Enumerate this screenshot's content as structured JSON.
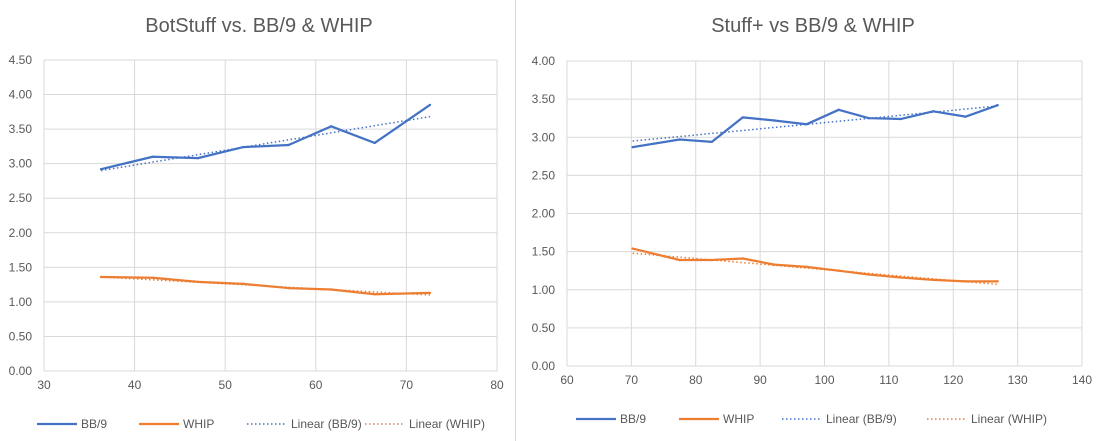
{
  "colors": {
    "bb9": "#4472c4",
    "whip": "#ed7d31"
  },
  "chart_data": [
    {
      "type": "line",
      "title": "BotStuff vs. BB/9 & WHIP",
      "xlabel": "",
      "ylabel": "",
      "xlim": [
        30,
        80
      ],
      "ylim": [
        0,
        4.5
      ],
      "xticks": [
        "30",
        "40",
        "50",
        "60",
        "70",
        "80"
      ],
      "yticks": [
        "0.00",
        "0.50",
        "1.00",
        "1.50",
        "2.00",
        "2.50",
        "3.00",
        "3.50",
        "4.00",
        "4.50"
      ],
      "grid": true,
      "legend_position": "bottom",
      "series": [
        {
          "name": "BB/9",
          "x": [
            36.3,
            42.0,
            47.0,
            52.0,
            57.0,
            61.7,
            66.5,
            72.6
          ],
          "values": [
            2.92,
            3.1,
            3.08,
            3.24,
            3.27,
            3.54,
            3.3,
            3.85
          ]
        },
        {
          "name": "WHIP",
          "x": [
            36.3,
            42.0,
            47.0,
            52.0,
            57.0,
            61.7,
            66.5,
            72.6
          ],
          "values": [
            1.36,
            1.35,
            1.29,
            1.26,
            1.2,
            1.18,
            1.11,
            1.13
          ]
        }
      ],
      "trendlines": [
        {
          "name": "Linear (BB/9)",
          "x": [
            36.3,
            72.6
          ],
          "values": [
            2.9,
            3.68
          ]
        },
        {
          "name": "Linear (WHIP)",
          "x": [
            36.3,
            72.6
          ],
          "values": [
            1.36,
            1.1
          ]
        }
      ]
    },
    {
      "type": "line",
      "title": "Stuff+ vs BB/9 & WHIP",
      "xlabel": "",
      "ylabel": "",
      "xlim": [
        60,
        140
      ],
      "ylim": [
        0,
        4.0
      ],
      "xticks": [
        "60",
        "70",
        "80",
        "90",
        "100",
        "110",
        "120",
        "130",
        "140"
      ],
      "yticks": [
        "0.00",
        "0.50",
        "1.00",
        "1.50",
        "2.00",
        "2.50",
        "3.00",
        "3.50",
        "4.00"
      ],
      "grid": true,
      "legend_position": "bottom",
      "series": [
        {
          "name": "BB/9",
          "x": [
            70.2,
            77.5,
            82.5,
            87.3,
            92.2,
            97.2,
            102.2,
            106.9,
            111.9,
            116.9,
            121.9,
            126.9
          ],
          "values": [
            2.87,
            2.97,
            2.94,
            3.26,
            3.22,
            3.17,
            3.36,
            3.25,
            3.24,
            3.34,
            3.27,
            3.42
          ]
        },
        {
          "name": "WHIP",
          "x": [
            70.2,
            77.5,
            82.5,
            87.3,
            92.2,
            97.2,
            102.2,
            106.9,
            111.9,
            116.9,
            121.9,
            126.9
          ],
          "values": [
            1.54,
            1.39,
            1.39,
            1.41,
            1.33,
            1.3,
            1.25,
            1.2,
            1.16,
            1.13,
            1.11,
            1.11
          ]
        }
      ],
      "trendlines": [
        {
          "name": "Linear (BB/9)",
          "x": [
            70.2,
            126.9
          ],
          "values": [
            2.95,
            3.41
          ]
        },
        {
          "name": "Linear (WHIP)",
          "x": [
            70.2,
            126.9
          ],
          "values": [
            1.48,
            1.07
          ]
        }
      ]
    }
  ]
}
